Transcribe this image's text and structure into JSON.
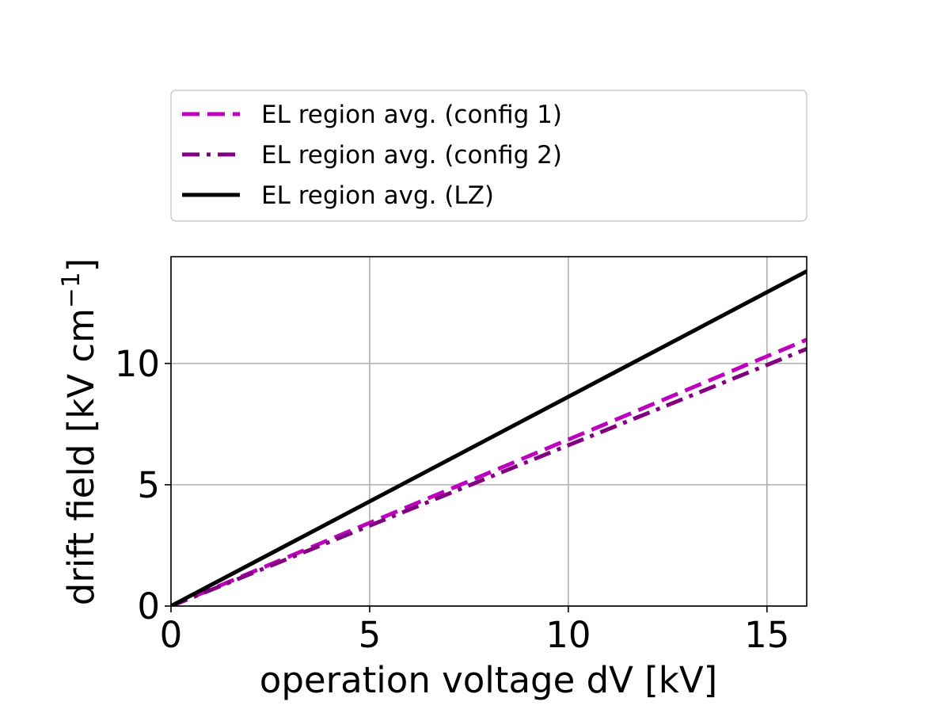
{
  "chart_data": {
    "type": "line",
    "title": "",
    "xlabel": "operation voltage dV [kV]",
    "ylabel": "drift field [kV cm",
    "ylabel_sup": "−1",
    "ylabel_close": "]",
    "xlim": [
      0,
      16
    ],
    "ylim": [
      0,
      14.4
    ],
    "xticks": [
      0,
      5,
      10,
      15
    ],
    "yticks": [
      0,
      5,
      10
    ],
    "grid": true,
    "legend_position": "above plot",
    "series": [
      {
        "name": "EL region avg. (config 1)",
        "color": "#bf00bf",
        "style": "dashed",
        "x": [
          0,
          16
        ],
        "y": [
          0,
          10.98
        ]
      },
      {
        "name": "EL region avg. (config 2)",
        "color": "#800080",
        "style": "dashdot",
        "x": [
          0,
          16
        ],
        "y": [
          0,
          10.6
        ]
      },
      {
        "name": "EL region avg. (LZ)",
        "color": "#000000",
        "style": "solid",
        "x": [
          0,
          16
        ],
        "y": [
          0,
          13.8
        ]
      }
    ]
  }
}
